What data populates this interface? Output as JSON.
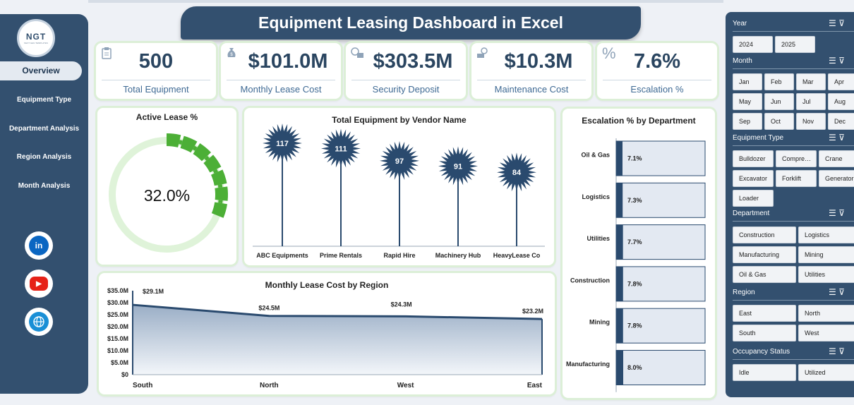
{
  "dashboard": {
    "title": "Equipment Leasing Dashboard in Excel"
  },
  "logo": {
    "text": "NGT",
    "subtext": "NEXT GEN TEMPLATES"
  },
  "nav": [
    {
      "label": "Overview",
      "active": true
    },
    {
      "label": "Equipment Type"
    },
    {
      "label": "Department Analysis"
    },
    {
      "label": "Region Analysis"
    },
    {
      "label": "Month Analysis"
    }
  ],
  "social": [
    {
      "name": "linkedin-icon",
      "glyph": "in",
      "color": "#0a66c2"
    },
    {
      "name": "youtube-icon",
      "glyph": "▶",
      "color": "#e62117"
    },
    {
      "name": "globe-icon",
      "glyph": "◍",
      "color": "#1a8fd6"
    }
  ],
  "kpis": [
    {
      "value": "500",
      "label": "Total Equipment",
      "icon": "clipboard-icon"
    },
    {
      "value": "$101.0M",
      "label": "Monthly Lease Cost",
      "icon": "money-bag-icon"
    },
    {
      "value": "$303.5M",
      "label": "Security Deposit",
      "icon": "deposit-icon"
    },
    {
      "value": "$10.3M",
      "label": "Maintenance Cost",
      "icon": "maintenance-icon"
    },
    {
      "value": "7.6%",
      "label": "Escalation %",
      "icon": "percent-icon"
    }
  ],
  "charts": {
    "active_lease": {
      "title": "Active Lease %",
      "value_text": "32.0%"
    },
    "vendor": {
      "title": "Total Equipment by Vendor Name"
    },
    "region": {
      "title": "Monthly Lease Cost by Region"
    },
    "escalation": {
      "title": "Escalation % by Department"
    }
  },
  "chart_data": [
    {
      "type": "pie",
      "title": "Active Lease %",
      "categories": [
        "Active",
        "Inactive"
      ],
      "values": [
        32.0,
        68.0
      ],
      "center_label": "32.0%",
      "colors": [
        "#4caf36",
        "#dff3d9"
      ]
    },
    {
      "type": "bar",
      "title": "Total Equipment by Vendor Name",
      "categories": [
        "ABC Equipments",
        "Prime Rentals",
        "Rapid Hire",
        "Machinery Hub",
        "HeavyLease Co"
      ],
      "values": [
        117,
        111,
        97,
        91,
        84
      ],
      "color": "#2a4a6e"
    },
    {
      "type": "area",
      "title": "Monthly Lease Cost by Region",
      "categories": [
        "South",
        "North",
        "West",
        "East"
      ],
      "values": [
        29.1,
        24.5,
        24.3,
        23.2
      ],
      "data_labels": [
        "$29.1M",
        "$24.5M",
        "$24.3M",
        "$23.2M"
      ],
      "ylim": [
        0,
        35
      ],
      "yticks": [
        "$0",
        "$5.0M",
        "$10.0M",
        "$15.0M",
        "$20.0M",
        "$25.0M",
        "$30.0M",
        "$35.0M"
      ],
      "color": "#2a4a6e"
    },
    {
      "type": "bar",
      "title": "Escalation % by Department",
      "categories": [
        "Oil & Gas",
        "Logistics",
        "Utilities",
        "Construction",
        "Mining",
        "Manufacturing"
      ],
      "values": [
        7.1,
        7.3,
        7.7,
        7.8,
        7.8,
        8.0
      ],
      "data_labels": [
        "7.1%",
        "7.3%",
        "7.7%",
        "7.8%",
        "7.8%",
        "8.0%"
      ],
      "color": "#2a4a6e"
    }
  ],
  "slicers": [
    {
      "header": "Year",
      "cols": 2,
      "items": [
        "2024",
        "2025"
      ]
    },
    {
      "header": "Month",
      "cols": 4,
      "items": [
        "Jan",
        "Feb",
        "Mar",
        "Apr",
        "May",
        "Jun",
        "Jul",
        "Aug",
        "Sep",
        "Oct",
        "Nov",
        "Dec"
      ]
    },
    {
      "header": "Equipment Type",
      "cols": 3,
      "items": [
        "Bulldozer",
        "Compre…",
        "Crane",
        "Excavator",
        "Forklift",
        "Generator",
        "Loader"
      ]
    },
    {
      "header": "Department",
      "cols": 2,
      "items": [
        "Construction",
        "Logistics",
        "Manufacturing",
        "Mining",
        "Oil & Gas",
        "Utilities"
      ]
    },
    {
      "header": "Region",
      "cols": 2,
      "items": [
        "East",
        "North",
        "South",
        "West"
      ]
    },
    {
      "header": "Occupancy Status",
      "cols": 2,
      "items": [
        "Idle",
        "Utilized"
      ]
    }
  ]
}
